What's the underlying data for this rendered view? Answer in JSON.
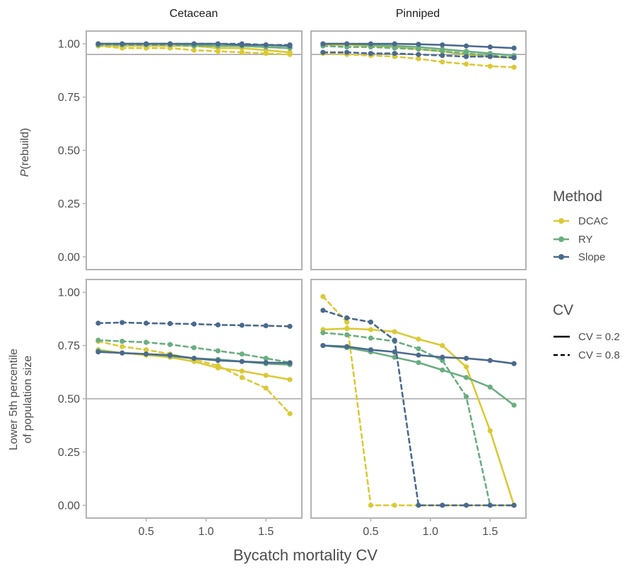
{
  "chart_data": {
    "type": "line",
    "facets": {
      "columns": [
        "Cetacean",
        "Pinniped"
      ],
      "rows": [
        "prebuild",
        "lower5th"
      ]
    },
    "xlabel": "Bycatch mortality CV",
    "ylabel_top_italic": "P",
    "ylabel_top_rest": "(rebuild)",
    "ylabel_bottom_line1": "Lower 5th percentile",
    "ylabel_bottom_line2": "of population size",
    "xlim": [
      0,
      1.8
    ],
    "ylim": [
      -0.06,
      1.06
    ],
    "x_ticks": [
      0.5,
      1.0,
      1.5
    ],
    "x_tick_labels": [
      "0.5",
      "1.0",
      "1.5"
    ],
    "y_ticks": [
      0,
      0.25,
      0.5,
      0.75,
      1.0
    ],
    "y_tick_labels": [
      "0.00",
      "0.25",
      "0.50",
      "0.75",
      "1.00"
    ],
    "hlines": {
      "prebuild": 0.95,
      "lower5th": 0.5
    },
    "x": [
      0.1,
      0.3,
      0.5,
      0.7,
      0.9,
      1.1,
      1.3,
      1.5,
      1.7
    ],
    "legend": {
      "method_title": "Method",
      "methods": [
        {
          "name": "DCAC",
          "color": "#DBC935"
        },
        {
          "name": "RY",
          "color": "#6AAE80"
        },
        {
          "name": "Slope",
          "color": "#4A6A8E"
        }
      ],
      "cv_title": "CV",
      "cvs": [
        {
          "name": "CV = 0.2",
          "dash": "solid"
        },
        {
          "name": "CV = 0.8",
          "dash": "dashed"
        }
      ]
    },
    "panels": [
      {
        "row": "prebuild",
        "column": "Cetacean",
        "series": [
          {
            "method": "DCAC",
            "cv": "0.2",
            "values": [
              0.99,
              0.99,
              0.99,
              0.99,
              0.99,
              0.98,
              0.98,
              0.97,
              0.96
            ]
          },
          {
            "method": "DCAC",
            "cv": "0.8",
            "values": [
              0.99,
              0.98,
              0.98,
              0.98,
              0.97,
              0.965,
              0.96,
              0.955,
              0.95
            ]
          },
          {
            "method": "RY",
            "cv": "0.2",
            "values": [
              1.0,
              1.0,
              1.0,
              1.0,
              0.995,
              0.99,
              0.99,
              0.985,
              0.98
            ]
          },
          {
            "method": "RY",
            "cv": "0.8",
            "values": [
              0.995,
              0.995,
              0.995,
              0.995,
              0.99,
              0.99,
              0.99,
              0.985,
              0.98
            ]
          },
          {
            "method": "Slope",
            "cv": "0.2",
            "values": [
              1.0,
              1.0,
              1.0,
              1.0,
              1.0,
              1.0,
              0.995,
              0.995,
              0.99
            ]
          },
          {
            "method": "Slope",
            "cv": "0.8",
            "values": [
              1.0,
              1.0,
              1.0,
              1.0,
              1.0,
              1.0,
              1.0,
              0.995,
              0.995
            ]
          }
        ]
      },
      {
        "row": "prebuild",
        "column": "Pinniped",
        "series": [
          {
            "method": "DCAC",
            "cv": "0.2",
            "values": [
              0.995,
              0.995,
              0.99,
              0.985,
              0.975,
              0.965,
              0.95,
              0.94,
              0.935
            ]
          },
          {
            "method": "DCAC",
            "cv": "0.8",
            "values": [
              0.955,
              0.95,
              0.945,
              0.94,
              0.93,
              0.915,
              0.905,
              0.895,
              0.89
            ]
          },
          {
            "method": "RY",
            "cv": "0.2",
            "values": [
              1.0,
              1.0,
              0.995,
              0.99,
              0.985,
              0.975,
              0.965,
              0.955,
              0.945
            ]
          },
          {
            "method": "RY",
            "cv": "0.8",
            "values": [
              0.99,
              0.985,
              0.985,
              0.98,
              0.975,
              0.965,
              0.955,
              0.945,
              0.935
            ]
          },
          {
            "method": "Slope",
            "cv": "0.2",
            "values": [
              1.0,
              1.0,
              1.0,
              1.0,
              0.998,
              0.995,
              0.99,
              0.985,
              0.98
            ]
          },
          {
            "method": "Slope",
            "cv": "0.8",
            "values": [
              0.96,
              0.96,
              0.955,
              0.955,
              0.95,
              0.945,
              0.94,
              0.94,
              0.935
            ]
          }
        ]
      },
      {
        "row": "lower5th",
        "column": "Cetacean",
        "series": [
          {
            "method": "DCAC",
            "cv": "0.2",
            "values": [
              0.73,
              0.715,
              0.705,
              0.695,
              0.675,
              0.645,
              0.63,
              0.61,
              0.59
            ]
          },
          {
            "method": "DCAC",
            "cv": "0.8",
            "values": [
              0.77,
              0.745,
              0.73,
              0.71,
              0.685,
              0.655,
              0.6,
              0.55,
              0.43
            ]
          },
          {
            "method": "RY",
            "cv": "0.2",
            "values": [
              0.725,
              0.715,
              0.71,
              0.7,
              0.69,
              0.685,
              0.675,
              0.665,
              0.66
            ]
          },
          {
            "method": "RY",
            "cv": "0.8",
            "values": [
              0.775,
              0.77,
              0.765,
              0.755,
              0.74,
              0.725,
              0.71,
              0.69,
              0.67
            ]
          },
          {
            "method": "Slope",
            "cv": "0.2",
            "values": [
              0.72,
              0.715,
              0.71,
              0.705,
              0.69,
              0.68,
              0.675,
              0.67,
              0.668
            ]
          },
          {
            "method": "Slope",
            "cv": "0.8",
            "values": [
              0.855,
              0.858,
              0.855,
              0.853,
              0.851,
              0.847,
              0.845,
              0.843,
              0.84
            ]
          }
        ]
      },
      {
        "row": "lower5th",
        "column": "Pinniped",
        "series": [
          {
            "method": "DCAC",
            "cv": "0.2",
            "values": [
              0.825,
              0.83,
              0.825,
              0.815,
              0.78,
              0.75,
              0.65,
              0.35,
              0.0
            ]
          },
          {
            "method": "DCAC",
            "cv": "0.8",
            "values": [
              0.98,
              0.86,
              0.0,
              0.0,
              0.0,
              0.0,
              0.0,
              0.0,
              0.0
            ]
          },
          {
            "method": "RY",
            "cv": "0.2",
            "values": [
              0.75,
              0.74,
              0.72,
              0.695,
              0.67,
              0.635,
              0.6,
              0.555,
              0.47
            ]
          },
          {
            "method": "RY",
            "cv": "0.8",
            "values": [
              0.81,
              0.8,
              0.785,
              0.77,
              0.735,
              0.68,
              0.51,
              0.0,
              0.0
            ]
          },
          {
            "method": "Slope",
            "cv": "0.2",
            "values": [
              0.75,
              0.745,
              0.73,
              0.72,
              0.705,
              0.695,
              0.69,
              0.68,
              0.665
            ]
          },
          {
            "method": "Slope",
            "cv": "0.8",
            "values": [
              0.915,
              0.88,
              0.86,
              0.775,
              0.0,
              0.0,
              0.0,
              0.0,
              0.0
            ]
          }
        ]
      }
    ]
  }
}
